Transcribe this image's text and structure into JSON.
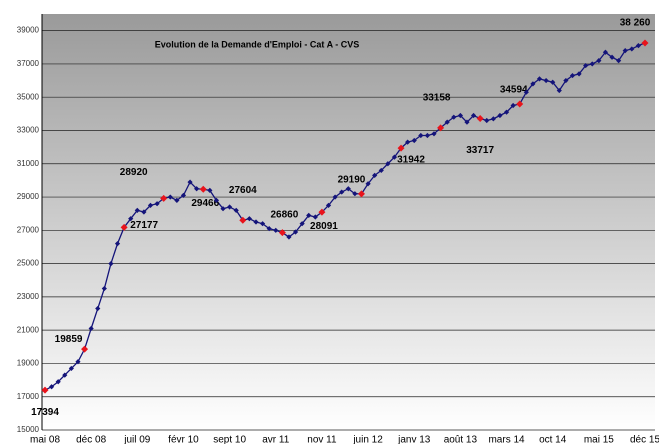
{
  "chart_data": {
    "type": "line",
    "title": "Evolution de la Demande d'Emploi - Cat A - CVS",
    "categories": [
      "mai 08",
      null,
      null,
      null,
      null,
      null,
      null,
      "déc 08",
      null,
      null,
      null,
      null,
      null,
      null,
      "juil 09",
      null,
      null,
      null,
      null,
      null,
      null,
      "févr 10",
      null,
      null,
      null,
      null,
      null,
      null,
      "sept 10",
      null,
      null,
      null,
      null,
      null,
      null,
      "avr 11",
      null,
      null,
      null,
      null,
      null,
      null,
      "nov 11",
      null,
      null,
      null,
      null,
      null,
      null,
      "juin 12",
      null,
      null,
      null,
      null,
      null,
      null,
      "janv 13",
      null,
      null,
      null,
      null,
      null,
      null,
      "août 13",
      null,
      null,
      null,
      null,
      null,
      null,
      "mars 14",
      null,
      null,
      null,
      null,
      null,
      null,
      "oct 14",
      null,
      null,
      null,
      null,
      null,
      null,
      "mai 15",
      null,
      null,
      null,
      null,
      null,
      null,
      "déc 15"
    ],
    "series": [
      {
        "name": "Demande d'Emploi Cat A",
        "color": "#14147a",
        "highlight_color": "#e8141c",
        "values": [
          17394,
          17600,
          17900,
          18300,
          18700,
          19100,
          19859,
          21100,
          22300,
          23500,
          25000,
          26200,
          27177,
          27700,
          28200,
          28100,
          28500,
          28600,
          28920,
          29000,
          28800,
          29100,
          29900,
          29500,
          29466,
          29400,
          28800,
          28300,
          28400,
          28200,
          27604,
          27700,
          27500,
          27400,
          27100,
          27000,
          26860,
          26600,
          26900,
          27400,
          27900,
          27800,
          28091,
          28500,
          29000,
          29300,
          29500,
          29200,
          29190,
          29800,
          30300,
          30600,
          31000,
          31400,
          31942,
          32300,
          32400,
          32700,
          32700,
          32800,
          33158,
          33500,
          33800,
          33900,
          33500,
          33900,
          33717,
          33600,
          33700,
          33900,
          34100,
          34500,
          34594,
          35300,
          35800,
          36100,
          36000,
          35900,
          35400,
          36000,
          36300,
          36400,
          36900,
          37000,
          37200,
          37700,
          37400,
          37200,
          37800,
          37900,
          38100,
          38260
        ],
        "value_labels": [
          "17394",
          null,
          null,
          null,
          null,
          null,
          "19859",
          null,
          null,
          null,
          null,
          null,
          "27177",
          null,
          null,
          null,
          null,
          null,
          "28920",
          null,
          null,
          null,
          null,
          null,
          "29466",
          null,
          null,
          null,
          null,
          null,
          "27604",
          null,
          null,
          null,
          null,
          null,
          "26860",
          null,
          null,
          null,
          null,
          null,
          "28091",
          null,
          null,
          null,
          null,
          null,
          "29190",
          null,
          null,
          null,
          null,
          null,
          "31942",
          null,
          null,
          null,
          null,
          null,
          "33158",
          null,
          null,
          null,
          null,
          null,
          "33717",
          null,
          null,
          null,
          null,
          null,
          "34594",
          null,
          null,
          null,
          null,
          null,
          null,
          null,
          null,
          null,
          null,
          null,
          null,
          null,
          null,
          null,
          null,
          null,
          null,
          "38 260"
        ]
      }
    ],
    "ylim": [
      15000,
      40000
    ],
    "yticks": [
      15000,
      17000,
      19000,
      21000,
      23000,
      25000,
      27000,
      29000,
      31000,
      33000,
      35000,
      37000,
      39000
    ],
    "grid": true
  }
}
